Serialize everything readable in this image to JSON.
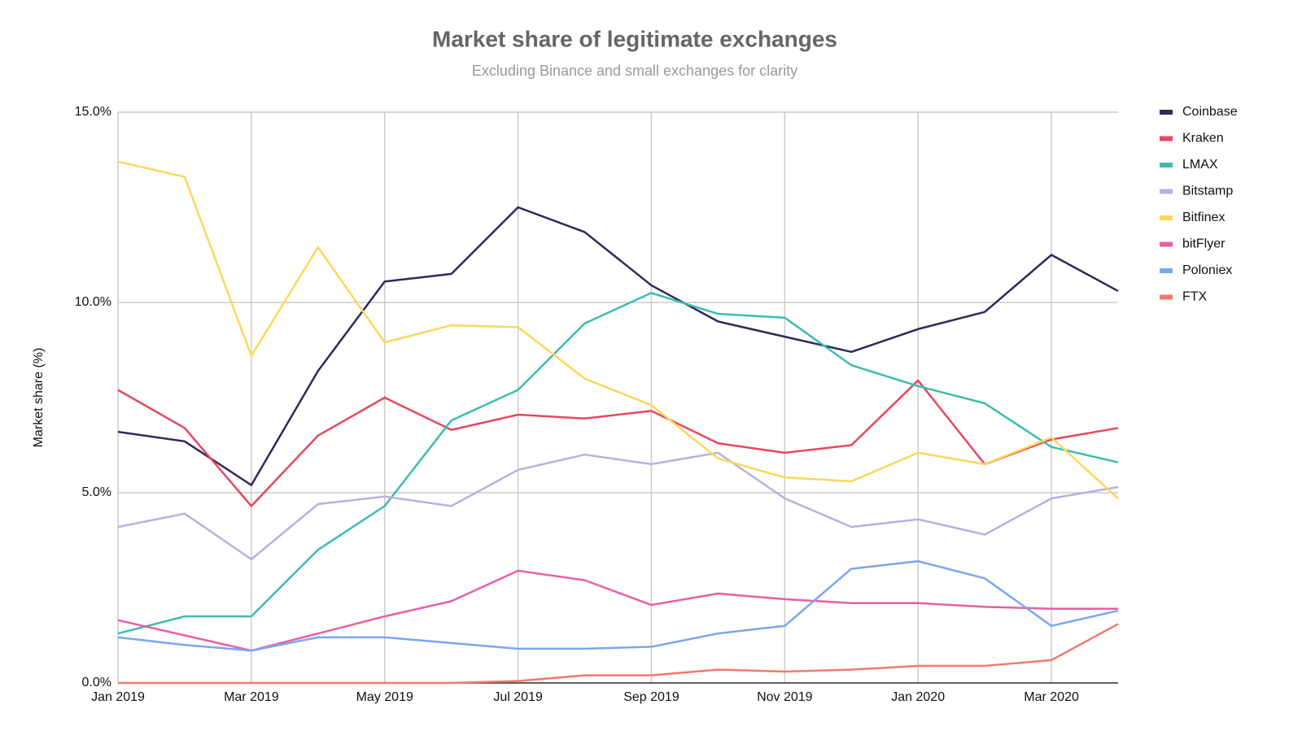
{
  "chart_data": {
    "type": "line",
    "title": "Market share of legitimate exchanges",
    "subtitle": "Excluding Binance and small exchanges for clarity",
    "y_label": "Market share (%)",
    "categories": [
      "Jan 2019",
      null,
      "Mar 2019",
      null,
      "May 2019",
      null,
      "Jul 2019",
      null,
      "Sep 2019",
      null,
      "Nov 2019",
      null,
      "Jan 2020",
      null,
      "Mar 2020",
      null
    ],
    "ylim": [
      0,
      15
    ],
    "yticks": [
      {
        "value": 0,
        "label": "0.0%"
      },
      {
        "value": 5,
        "label": "5.0%"
      },
      {
        "value": 10,
        "label": "10.0%"
      },
      {
        "value": 15,
        "label": "15.0%"
      }
    ],
    "grid": true,
    "legend": "right",
    "series": [
      {
        "name": "Coinbase",
        "color": "#2d2a5a",
        "values": [
          6.6,
          6.35,
          5.2,
          8.2,
          10.55,
          10.75,
          12.5,
          11.85,
          10.45,
          9.5,
          9.1,
          8.7,
          9.3,
          9.75,
          11.25,
          10.3
        ]
      },
      {
        "name": "Kraken",
        "color": "#e8475f",
        "values": [
          7.7,
          6.7,
          4.65,
          6.5,
          7.5,
          6.65,
          7.05,
          6.95,
          7.15,
          6.3,
          6.05,
          6.25,
          7.95,
          5.75,
          6.4,
          6.7
        ]
      },
      {
        "name": "LMAX",
        "color": "#3dbcb0",
        "values": [
          1.3,
          1.75,
          1.75,
          3.5,
          4.65,
          6.9,
          7.7,
          9.45,
          10.25,
          9.7,
          9.6,
          8.35,
          7.8,
          7.35,
          6.2,
          5.8
        ]
      },
      {
        "name": "Bitstamp",
        "color": "#b8b0e0",
        "values": [
          4.1,
          4.45,
          3.25,
          4.7,
          4.9,
          4.65,
          5.6,
          6.0,
          5.75,
          6.05,
          4.85,
          4.1,
          4.3,
          3.9,
          4.85,
          5.15
        ]
      },
      {
        "name": "Bitfinex",
        "color": "#fad85a",
        "values": [
          13.7,
          13.3,
          8.6,
          11.45,
          8.95,
          9.4,
          9.35,
          8.0,
          7.3,
          5.9,
          5.4,
          5.3,
          6.05,
          5.75,
          6.45,
          4.85
        ]
      },
      {
        "name": "bitFlyer",
        "color": "#e85fa5",
        "values": [
          1.65,
          1.25,
          0.85,
          1.3,
          1.75,
          2.15,
          2.95,
          2.7,
          2.05,
          2.35,
          2.2,
          2.1,
          2.1,
          2.0,
          1.95,
          1.95
        ]
      },
      {
        "name": "Poloniex",
        "color": "#7aa7ef",
        "values": [
          1.2,
          1.0,
          0.85,
          1.2,
          1.2,
          1.05,
          0.9,
          0.9,
          0.95,
          1.3,
          1.5,
          3.0,
          3.2,
          2.75,
          1.5,
          1.9
        ]
      },
      {
        "name": "FTX",
        "color": "#ef7a6d",
        "values": [
          0,
          0,
          0,
          0,
          0,
          0,
          0.05,
          0.2,
          0.2,
          0.35,
          0.3,
          0.35,
          0.45,
          0.45,
          0.6,
          1.55
        ]
      }
    ]
  }
}
